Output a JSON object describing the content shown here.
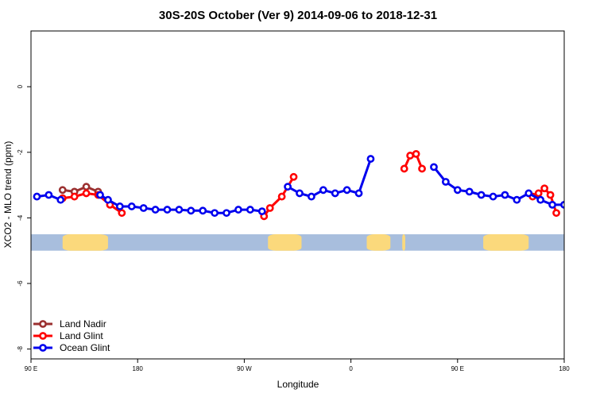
{
  "chart_data": {
    "type": "line",
    "title": "30S-20S October (Ver 9)   2014-09-06 to 2018-12-31",
    "xlabel": "Longitude",
    "ylabel": "XCO2 - MLO trend (ppm)",
    "xlim": [
      -90,
      180
    ],
    "ylim": [
      -8.3,
      1.7
    ],
    "x_ticks": [
      {
        "value": -90,
        "label": "90 E"
      },
      {
        "value": -36,
        "label": "180"
      },
      {
        "value": 18,
        "label": "90 W"
      },
      {
        "value": 72,
        "label": "0"
      },
      {
        "value": 126,
        "label": "90 E"
      },
      {
        "value": 180,
        "label": "180"
      }
    ],
    "y_ticks": [
      {
        "value": 0,
        "label": "0"
      },
      {
        "value": -2,
        "label": "-2"
      },
      {
        "value": -4,
        "label": "-4"
      },
      {
        "value": -6,
        "label": "-6"
      },
      {
        "value": -8,
        "label": "-8"
      }
    ],
    "legend_position": "bottom-left",
    "land_ocean_band": {
      "y_range": [
        -5.0,
        -4.5
      ],
      "ocean_color": "#a8bedd",
      "land_color": "#fbd97c",
      "land_ranges": [
        [
          -74,
          -51
        ],
        [
          30,
          47
        ],
        [
          80,
          92
        ],
        [
          98,
          99.5
        ],
        [
          139,
          162
        ]
      ]
    },
    "series": [
      {
        "name": "Land Nadir",
        "color": "#9b3030",
        "x": [
          -74,
          -68,
          -62,
          -56
        ],
        "y": [
          -3.15,
          -3.2,
          -3.05,
          -3.2
        ]
      },
      {
        "name": "Land Glint",
        "color": "#ff0000",
        "x": [
          -74,
          -68,
          -62,
          -56,
          -50,
          -44,
          28,
          31,
          37,
          43,
          99,
          102,
          105,
          108,
          164,
          167,
          170,
          173,
          176
        ],
        "y": [
          -3.4,
          -3.35,
          -3.25,
          -3.3,
          -3.6,
          -3.85,
          -3.95,
          -3.7,
          -3.35,
          -2.75,
          -2.5,
          -2.1,
          -2.05,
          -2.5,
          -3.35,
          -3.25,
          -3.1,
          -3.3,
          -3.85
        ]
      },
      {
        "name": "Ocean Glint",
        "color": "#0000ee",
        "x": [
          -87,
          -81,
          -75,
          -55,
          -51,
          -45,
          -39,
          -33,
          -27,
          -21,
          -15,
          -9,
          -3,
          3,
          9,
          15,
          21,
          27,
          40,
          46,
          52,
          58,
          64,
          70,
          76,
          82,
          114,
          120,
          126,
          132,
          138,
          144,
          150,
          156,
          162,
          168,
          174,
          180,
          186
        ],
        "y": [
          -3.35,
          -3.3,
          -3.45,
          -3.3,
          -3.45,
          -3.65,
          -3.65,
          -3.7,
          -3.75,
          -3.75,
          -3.75,
          -3.78,
          -3.78,
          -3.85,
          -3.85,
          -3.75,
          -3.75,
          -3.8,
          -3.05,
          -3.25,
          -3.35,
          -3.15,
          -3.25,
          -3.15,
          -3.25,
          -2.2,
          -2.45,
          -2.9,
          -3.15,
          -3.2,
          -3.3,
          -3.35,
          -3.3,
          -3.45,
          -3.25,
          -3.45,
          -3.6,
          -3.6,
          -3.6
        ]
      }
    ]
  }
}
